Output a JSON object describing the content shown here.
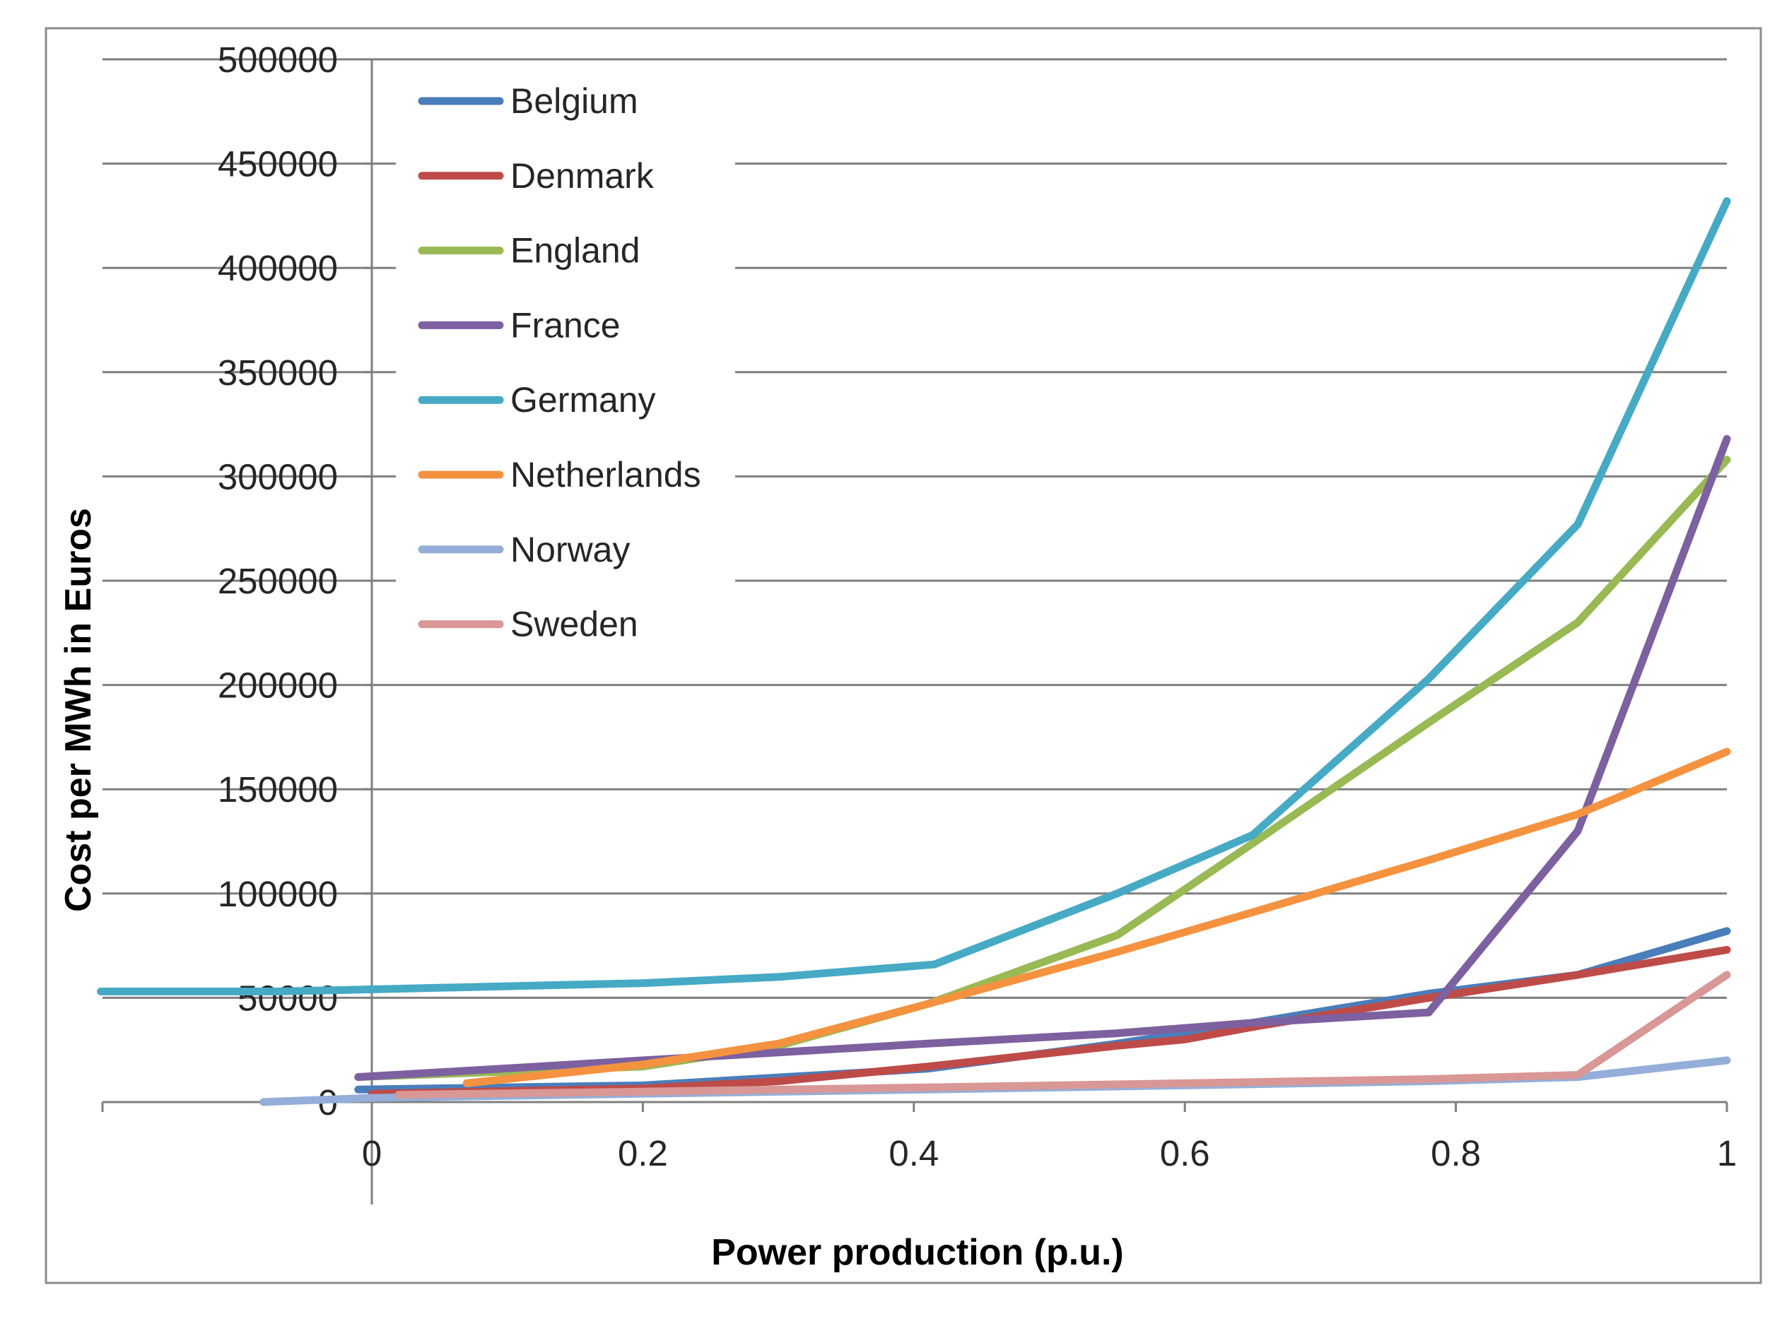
{
  "chart_data": {
    "type": "line",
    "title": "",
    "xlabel": "Power production (p.u.)",
    "ylabel": "Cost per MWh in Euros",
    "xlim": [
      -0.2,
      1
    ],
    "ylim": [
      0,
      500000
    ],
    "x_ticks": [
      0,
      0.2,
      0.4,
      0.6,
      0.8,
      1
    ],
    "x_tick_labels": [
      "0",
      "0.2",
      "0.4",
      "0.6",
      "0.8",
      "1"
    ],
    "y_ticks": [
      0,
      50000,
      100000,
      150000,
      200000,
      250000,
      300000,
      350000,
      400000,
      450000,
      500000
    ],
    "y_tick_labels": [
      "0",
      "50000",
      "100000",
      "150000",
      "200000",
      "250000",
      "300000",
      "350000",
      "400000",
      "450000",
      "500000"
    ],
    "grid": true,
    "legend_position": "top-left",
    "series": [
      {
        "name": "Belgium",
        "color": "#4a7ebb",
        "points": [
          [
            -0.01,
            6000
          ],
          [
            0.2,
            8000
          ],
          [
            0.41,
            16000
          ],
          [
            0.55,
            28000
          ],
          [
            0.65,
            38000
          ],
          [
            0.78,
            52000
          ],
          [
            0.89,
            61000
          ],
          [
            1.0,
            82000
          ]
        ]
      },
      {
        "name": "Denmark",
        "color": "#be4b48",
        "points": [
          [
            0.0,
            4000
          ],
          [
            0.2,
            6500
          ],
          [
            0.3,
            10000
          ],
          [
            0.41,
            17000
          ],
          [
            0.55,
            27000
          ],
          [
            0.6,
            30000
          ],
          [
            0.65,
            36000
          ],
          [
            0.78,
            50000
          ],
          [
            0.89,
            61000
          ],
          [
            1.0,
            73000
          ]
        ]
      },
      {
        "name": "England",
        "color": "#98b954",
        "points": [
          [
            -0.01,
            12000
          ],
          [
            0.2,
            17000
          ],
          [
            0.3,
            27000
          ],
          [
            0.41,
            47000
          ],
          [
            0.55,
            80000
          ],
          [
            0.65,
            124000
          ],
          [
            0.78,
            182000
          ],
          [
            0.89,
            230000
          ],
          [
            1.0,
            308000
          ]
        ]
      },
      {
        "name": "France",
        "color": "#7d60a0",
        "points": [
          [
            -0.01,
            12000
          ],
          [
            0.2,
            20000
          ],
          [
            0.41,
            28000
          ],
          [
            0.55,
            33000
          ],
          [
            0.65,
            38000
          ],
          [
            0.78,
            43000
          ],
          [
            0.89,
            130000
          ],
          [
            1.0,
            318000
          ]
        ]
      },
      {
        "name": "Germany",
        "color": "#46aac5",
        "points": [
          [
            -0.2,
            53000
          ],
          [
            -0.07,
            53000
          ],
          [
            0.2,
            57000
          ],
          [
            0.3,
            60000
          ],
          [
            0.415,
            66000
          ],
          [
            0.55,
            100000
          ],
          [
            0.65,
            128000
          ],
          [
            0.78,
            203000
          ],
          [
            0.89,
            277000
          ],
          [
            1.0,
            432000
          ]
        ]
      },
      {
        "name": "Netherlands",
        "color": "#f59240",
        "points": [
          [
            0.07,
            9000
          ],
          [
            0.2,
            18000
          ],
          [
            0.3,
            28000
          ],
          [
            0.41,
            47000
          ],
          [
            0.55,
            72000
          ],
          [
            0.65,
            91000
          ],
          [
            0.78,
            116000
          ],
          [
            0.89,
            138000
          ],
          [
            1.0,
            168000
          ]
        ]
      },
      {
        "name": "Norway",
        "color": "#94aed9",
        "points": [
          [
            -0.08,
            0
          ],
          [
            0.0,
            2000
          ],
          [
            0.2,
            4000
          ],
          [
            0.41,
            6000
          ],
          [
            0.6,
            8000
          ],
          [
            0.78,
            10000
          ],
          [
            0.89,
            12000
          ],
          [
            1.0,
            20000
          ]
        ]
      },
      {
        "name": "Sweden",
        "color": "#d99795",
        "points": [
          [
            0.02,
            3500
          ],
          [
            0.2,
            5000
          ],
          [
            0.41,
            7000
          ],
          [
            0.6,
            9000
          ],
          [
            0.78,
            11000
          ],
          [
            0.89,
            13000
          ],
          [
            1.0,
            61000
          ]
        ]
      }
    ]
  }
}
